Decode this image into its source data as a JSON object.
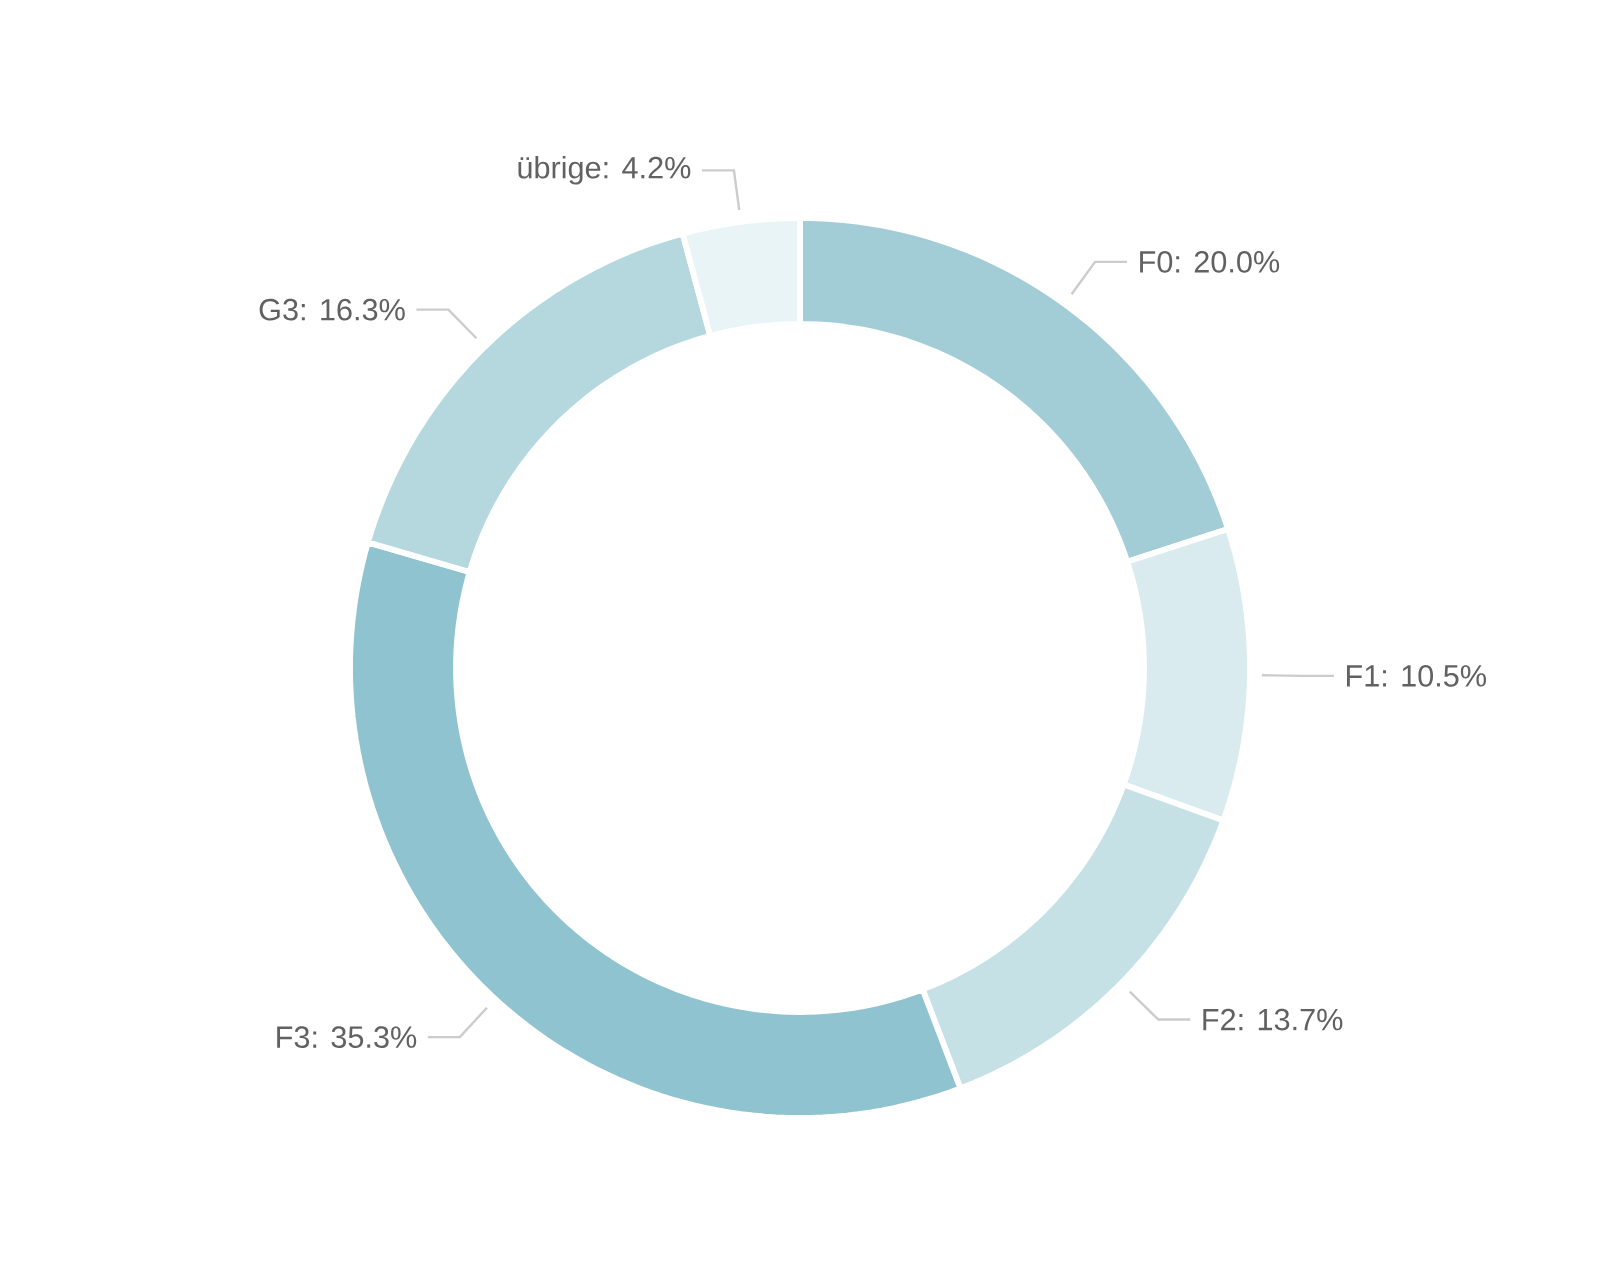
{
  "chart_data": {
    "type": "donut",
    "categories": [
      "F0",
      "F1",
      "F2",
      "F3",
      "G3",
      "übrige"
    ],
    "values": [
      20.0,
      10.5,
      13.7,
      35.3,
      16.3,
      4.2
    ],
    "value_labels": [
      ": 20.0%",
      ": 10.5%",
      ": 13.7%",
      ": 35.3%",
      ": 16.3%",
      ": 4.2%"
    ],
    "colors": [
      "#a3cdd6",
      "#d9ebef",
      "#c6e1e6",
      "#8fc3cf",
      "#b5d8df",
      "#e9f4f6"
    ]
  }
}
